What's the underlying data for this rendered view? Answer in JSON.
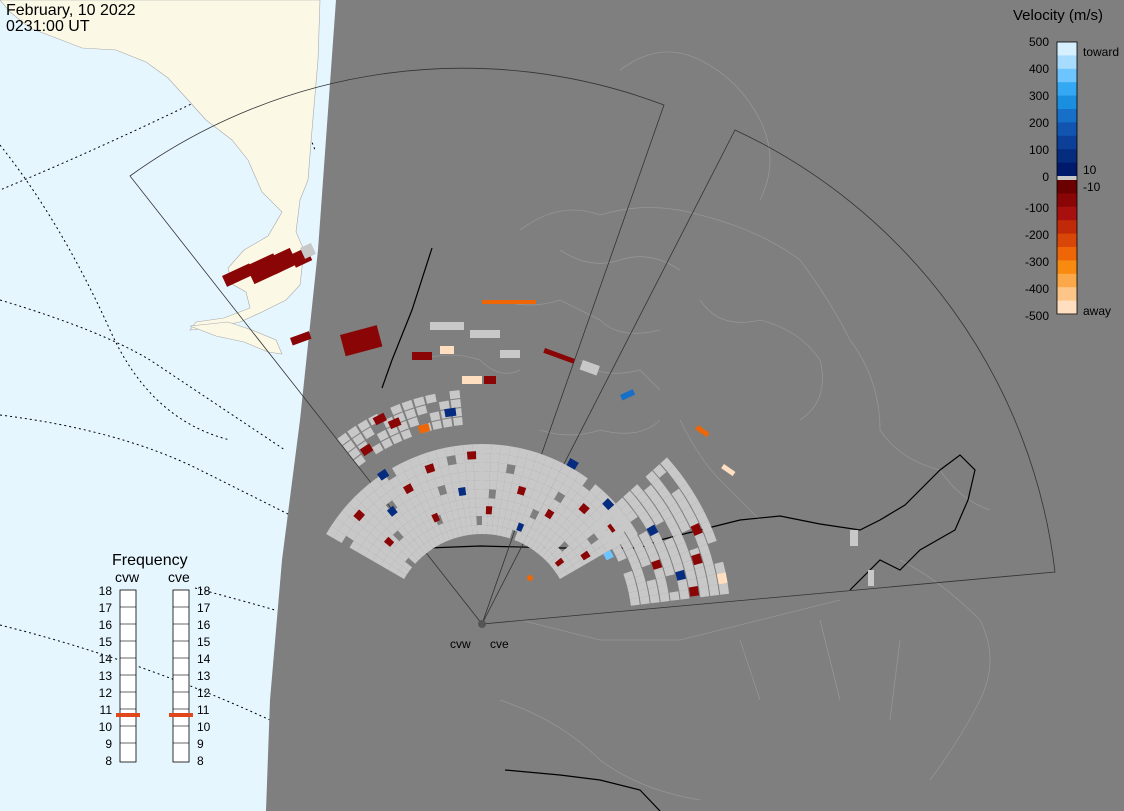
{
  "header": {
    "date": "February, 10 2022",
    "time": "0231:00 UT"
  },
  "colorbar": {
    "title": "Velocity (m/s)",
    "ticks": [
      "500",
      "400",
      "300",
      "200",
      "100",
      "0",
      "-100",
      "-200",
      "-300",
      "-400",
      "-500"
    ],
    "extra_ticks": [
      "10",
      "-10"
    ],
    "label_top": "toward",
    "label_bottom": "away",
    "colors_toward": [
      "#d6f0ff",
      "#a8dcff",
      "#6ec4ff",
      "#34a8f2",
      "#1a8fe0",
      "#1670c8",
      "#1155b0",
      "#0b3f98",
      "#062c80",
      "#001a6b"
    ],
    "colors_away": [
      "#6b0000",
      "#8a0606",
      "#a81010",
      "#c02a08",
      "#d84608",
      "#ee6606",
      "#f88a10",
      "#fba84a",
      "#fdc688",
      "#ffdfc0"
    ],
    "ground_scatter_color": "#c8c8c8"
  },
  "radars": [
    {
      "code": "cvw"
    },
    {
      "code": "cve"
    }
  ],
  "frequency": {
    "title": "Frequency",
    "scale_labels": [
      "18",
      "17",
      "16",
      "15",
      "14",
      "13",
      "12",
      "11",
      "10",
      "9",
      "8"
    ],
    "panels": [
      {
        "radar": "cvw",
        "value_mhz": 11
      },
      {
        "radar": "cve",
        "value_mhz": 11
      }
    ],
    "indicator_color": "#e0481c"
  },
  "colors": {
    "land": "#7f7f7f",
    "ocean_night": "#7f7f7f",
    "ocean_day": "#e6f6ff",
    "land_day": "#fbf8e6",
    "coast": "#9a9a9a",
    "border": "#000000",
    "fov": "#333333"
  }
}
